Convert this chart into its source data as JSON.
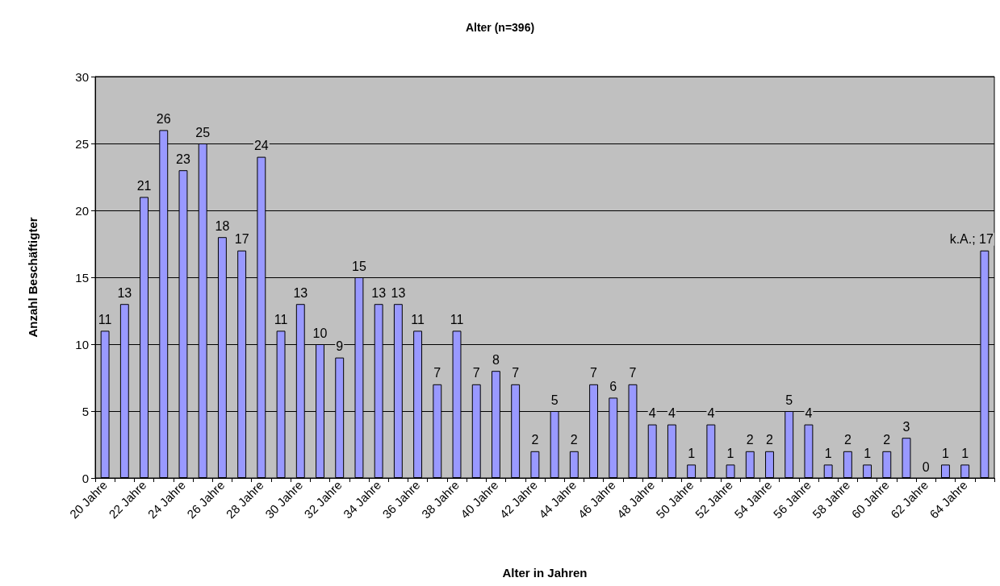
{
  "chart_data": {
    "type": "bar",
    "title": "Alter (n=396)",
    "xlabel": "Alter in Jahren",
    "ylabel": "Anzahl Beschäftigter",
    "categories": [
      "20 Jahre",
      null,
      "22 Jahre",
      null,
      "24 Jahre",
      null,
      "26 Jahre",
      null,
      "28 Jahre",
      null,
      "30 Jahre",
      null,
      "32 Jahre",
      null,
      "34 Jahre",
      null,
      "36 Jahre",
      null,
      "38 Jahre",
      null,
      "40 Jahre",
      null,
      "42 Jahre",
      null,
      "44 Jahre",
      null,
      "46 Jahre",
      null,
      "48 Jahre",
      null,
      "50 Jahre",
      null,
      "52 Jahre",
      null,
      "54 Jahre",
      null,
      "56 Jahre",
      null,
      "58 Jahre",
      null,
      "60 Jahre",
      null,
      "62 Jahre",
      null,
      "64 Jahre",
      null
    ],
    "values": [
      11,
      13,
      21,
      26,
      23,
      25,
      18,
      17,
      24,
      11,
      13,
      10,
      9,
      15,
      13,
      13,
      11,
      7,
      11,
      7,
      8,
      7,
      2,
      5,
      2,
      7,
      6,
      7,
      4,
      4,
      1,
      4,
      1,
      2,
      2,
      5,
      4,
      1,
      2,
      1,
      2,
      3,
      0,
      1,
      1,
      17
    ],
    "value_labels": [
      "11",
      "13",
      "21",
      "26",
      "23",
      "25",
      "18",
      "17",
      "24",
      "11",
      "13",
      "10",
      "9",
      "15",
      "13",
      "13",
      "11",
      "7",
      "11",
      "7",
      "8",
      "7",
      "2",
      "5",
      "2",
      "7",
      "6",
      "7",
      "4",
      "4",
      "1",
      "4",
      "1",
      "2",
      "2",
      "5",
      "4",
      "1",
      "2",
      "1",
      "2",
      "3",
      "0",
      "1",
      "1",
      "k.A.; 17"
    ],
    "color": "#9999ff",
    "ylim": [
      0,
      30
    ],
    "yticks": [
      0,
      5,
      10,
      15,
      20,
      25,
      30
    ],
    "grid": "y"
  }
}
